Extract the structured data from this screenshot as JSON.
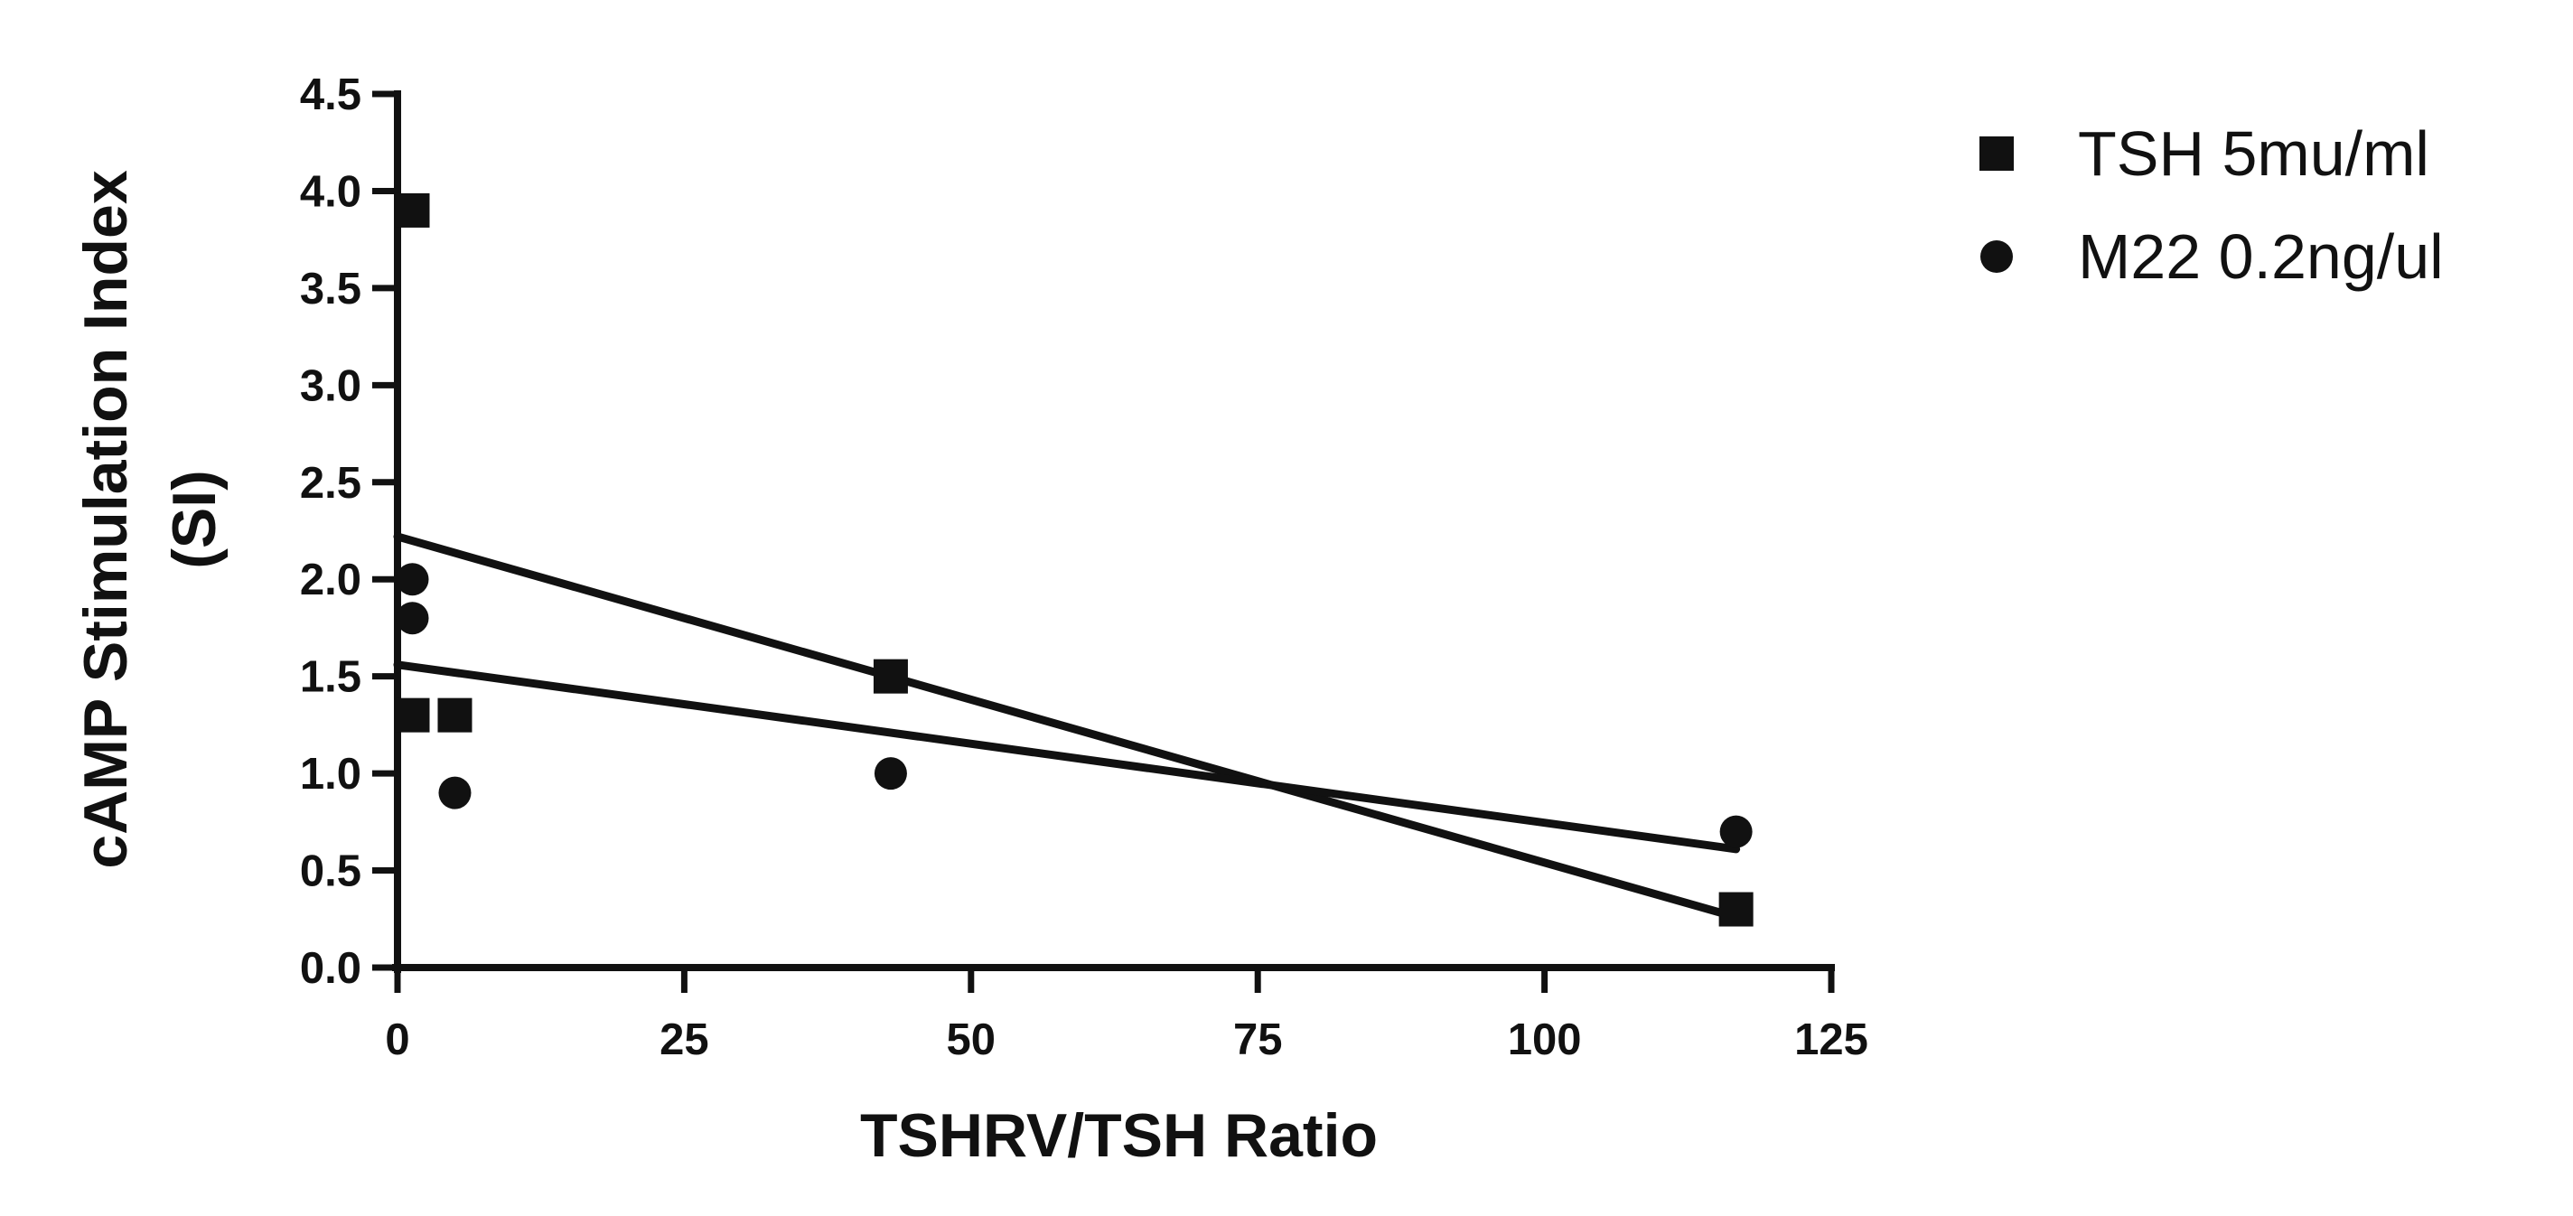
{
  "chart_data": {
    "type": "scatter",
    "xlabel": "TSHRV/TSH Ratio",
    "ylabel_lines": [
      "cAMP Stimulation Index",
      "(SI)"
    ],
    "xlim": [
      0,
      125
    ],
    "ylim": [
      0,
      4.5
    ],
    "xticks": [
      "0",
      "25",
      "50",
      "75",
      "100",
      "125"
    ],
    "yticks": [
      "0.0",
      "0.5",
      "1.0",
      "1.5",
      "2.0",
      "2.5",
      "3.0",
      "3.5",
      "4.0",
      "4.5"
    ],
    "grid": false,
    "legend_position": "top-right",
    "series": [
      {
        "name": "TSH 5mu/ml",
        "marker": "square",
        "color": "#111111",
        "points": [
          {
            "x": 1.3,
            "y": 3.9
          },
          {
            "x": 1.3,
            "y": 1.3
          },
          {
            "x": 5.0,
            "y": 1.3
          },
          {
            "x": 43.0,
            "y": 1.5
          },
          {
            "x": 116.7,
            "y": 0.3
          }
        ],
        "fit_line": {
          "x": [
            0,
            116.7
          ],
          "y": [
            2.22,
            0.26
          ]
        }
      },
      {
        "name": "M22 0.2ng/ul",
        "marker": "circle",
        "color": "#111111",
        "points": [
          {
            "x": 1.3,
            "y": 2.0
          },
          {
            "x": 1.3,
            "y": 1.8
          },
          {
            "x": 5.0,
            "y": 0.9
          },
          {
            "x": 43.0,
            "y": 1.0
          },
          {
            "x": 116.7,
            "y": 0.7
          }
        ],
        "fit_line": {
          "x": [
            0,
            116.7
          ],
          "y": [
            1.56,
            0.61
          ]
        }
      }
    ]
  }
}
